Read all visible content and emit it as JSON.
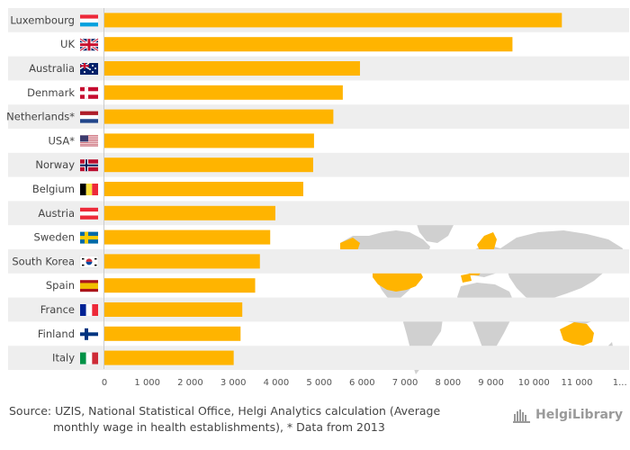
{
  "chart_data": {
    "type": "bar",
    "orientation": "horizontal",
    "categories": [
      "Luxembourg",
      "UK",
      "Australia",
      "Denmark",
      "Netherlands*",
      "USA*",
      "Norway",
      "Belgium",
      "Austria",
      "Sweden",
      "South Korea",
      "Spain",
      "France",
      "Finland",
      "Italy"
    ],
    "flags": [
      "luxembourg-flag",
      "uk-flag",
      "australia-flag",
      "denmark-flag",
      "netherlands-flag",
      "usa-flag",
      "norway-flag",
      "belgium-flag",
      "austria-flag",
      "sweden-flag",
      "south-korea-flag",
      "spain-flag",
      "france-flag",
      "finland-flag",
      "italy-flag"
    ],
    "values": [
      10650,
      9500,
      5950,
      5550,
      5330,
      4880,
      4860,
      4630,
      3980,
      3860,
      3620,
      3510,
      3210,
      3170,
      3010
    ],
    "xlim": [
      0,
      12000
    ],
    "ticks": [
      "0",
      "1 000",
      "2 000",
      "3 000",
      "4 000",
      "5 000",
      "6 000",
      "7 000",
      "8 000",
      "9 000",
      "10 000",
      "11 000",
      "1..."
    ],
    "bar_color": "#ffb400",
    "band_color": "#eeeeee",
    "highlight_color": "#ffb400",
    "map_color": "#d0d0d0",
    "title": "",
    "xlabel": "",
    "ylabel": ""
  },
  "source": {
    "line1": "Source: UZIS, National Statistical Office, Helgi Analytics calculation (Average",
    "line2": "monthly wage in health establishments), * Data from 2013"
  },
  "logo": {
    "text": "HelgiLibrary",
    "icon": "helgi-library-icon"
  }
}
